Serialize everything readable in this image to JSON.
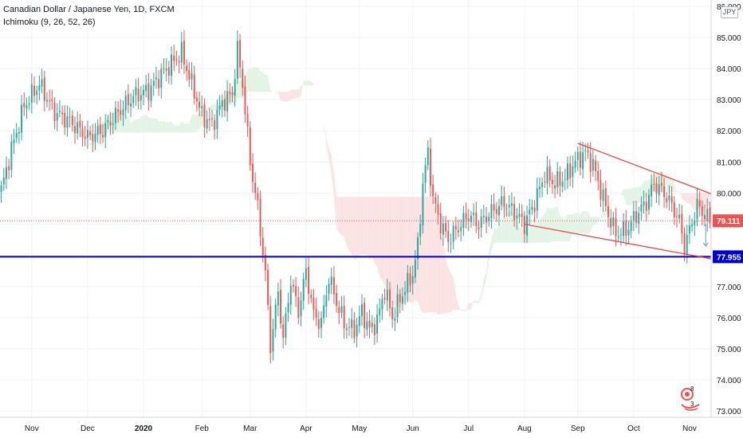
{
  "header": {
    "symbol_title": "Canadian Dollar / Japanese Yen, 1D, FXCM",
    "indicator": "Ichimoku (9, 26, 52, 26)",
    "currency": "JPY"
  },
  "badges": {
    "top": "8",
    "bottom": "3"
  },
  "chart_data": {
    "type": "candlestick",
    "ylim": [
      72.8,
      86.2
    ],
    "y_ticks": [
      "73.000",
      "74.000",
      "75.000",
      "76.000",
      "77.000",
      "78.000",
      "79.000",
      "80.000",
      "81.000",
      "82.000",
      "83.000",
      "84.000",
      "85.000",
      "86.000"
    ],
    "y_tick_values": [
      73,
      74,
      75,
      76,
      77,
      78,
      79,
      80,
      81,
      82,
      83,
      84,
      85,
      86
    ],
    "x_ticks": [
      "Nov",
      "Dec",
      "2020",
      "Feb",
      "Mar",
      "Apr",
      "May",
      "Jun",
      "Jul",
      "Aug",
      "Sep",
      "Oct",
      "Nov"
    ],
    "x_tick_index": [
      12,
      34,
      56,
      79,
      98,
      120,
      141,
      162,
      184,
      206,
      227,
      249,
      271
    ],
    "n_bars": 280,
    "close_keys": [
      [
        0,
        80.1
      ],
      [
        4,
        81.4
      ],
      [
        9,
        82.8
      ],
      [
        15,
        83.5
      ],
      [
        21,
        82.6
      ],
      [
        27,
        82.3
      ],
      [
        34,
        81.8
      ],
      [
        40,
        82.0
      ],
      [
        45,
        82.5
      ],
      [
        52,
        83.1
      ],
      [
        58,
        83.3
      ],
      [
        64,
        83.9
      ],
      [
        71,
        84.5
      ],
      [
        75,
        83.5
      ],
      [
        79,
        82.5
      ],
      [
        83,
        82.2
      ],
      [
        87,
        82.9
      ],
      [
        91,
        83.2
      ],
      [
        93,
        84.6
      ],
      [
        95,
        83.5
      ],
      [
        98,
        81.0
      ],
      [
        101,
        79.5
      ],
      [
        104,
        77.4
      ],
      [
        106,
        75.1
      ],
      [
        109,
        76.8
      ],
      [
        111,
        75.3
      ],
      [
        114,
        77.2
      ],
      [
        117,
        76.2
      ],
      [
        120,
        77.5
      ],
      [
        123,
        76.1
      ],
      [
        126,
        75.8
      ],
      [
        129,
        77.3
      ],
      [
        132,
        76.5
      ],
      [
        135,
        75.8
      ],
      [
        139,
        75.6
      ],
      [
        142,
        76.2
      ],
      [
        145,
        75.6
      ],
      [
        148,
        75.9
      ],
      [
        151,
        76.9
      ],
      [
        154,
        76.0
      ],
      [
        157,
        76.6
      ],
      [
        160,
        77.1
      ],
      [
        162,
        77.4
      ],
      [
        164,
        78.3
      ],
      [
        166,
        80.3
      ],
      [
        168,
        81.3
      ],
      [
        170,
        79.8
      ],
      [
        173,
        79.0
      ],
      [
        176,
        78.5
      ],
      [
        180,
        78.9
      ],
      [
        184,
        79.3
      ],
      [
        188,
        79.0
      ],
      [
        193,
        79.4
      ],
      [
        198,
        79.7
      ],
      [
        203,
        79.3
      ],
      [
        206,
        79.0
      ],
      [
        210,
        79.7
      ],
      [
        214,
        80.6
      ],
      [
        218,
        80.3
      ],
      [
        222,
        80.5
      ],
      [
        226,
        81.0
      ],
      [
        230,
        81.3
      ],
      [
        233,
        80.9
      ],
      [
        236,
        80.1
      ],
      [
        239,
        79.3
      ],
      [
        242,
        78.7
      ],
      [
        246,
        78.8
      ],
      [
        250,
        79.3
      ],
      [
        254,
        79.7
      ],
      [
        257,
        80.3
      ],
      [
        261,
        80.0
      ],
      [
        264,
        79.6
      ],
      [
        267,
        79.1
      ],
      [
        269,
        78.3
      ],
      [
        271,
        78.8
      ],
      [
        274,
        79.6
      ],
      [
        277,
        79.3
      ],
      [
        279,
        79.11
      ]
    ],
    "horizontal_line": {
      "value": 77.955,
      "label": "77.955",
      "color": "#0000cc"
    },
    "last_price": {
      "value": 79.111,
      "label": "79.111",
      "color": "#ef5350"
    },
    "wedge_upper": [
      [
        227,
        81.6
      ],
      [
        282,
        79.9
      ]
    ],
    "wedge_lower": [
      [
        206,
        79.0
      ],
      [
        282,
        77.85
      ]
    ],
    "colors": {
      "up": "#26a69a",
      "down": "#ef5350",
      "cloud_bull": "#e3f4e6",
      "cloud_bear": "#fce3e3",
      "trendline": "#ef3b3b"
    },
    "grid": true,
    "legend_position": "top-left"
  }
}
